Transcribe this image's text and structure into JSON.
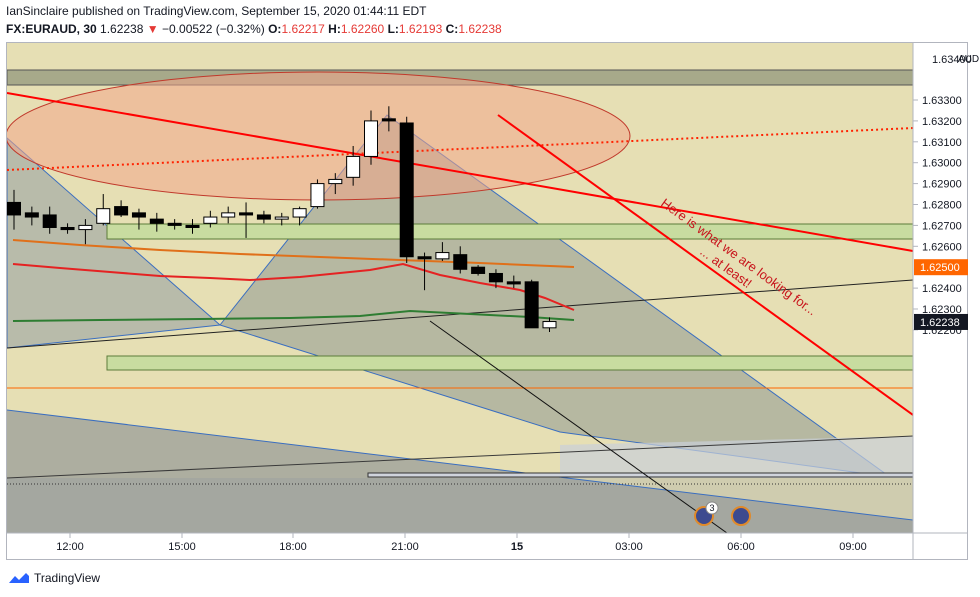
{
  "header": {
    "line1": "IanSinclaire published on TradingView.com, September 15, 2020 01:44:11 EDT",
    "symbol": "FX:EURAUD, 30",
    "price": "1.62238",
    "change_arrow": "▼",
    "change": "−0.00522 (−0.32%)",
    "o_label": "O:",
    "o_value": "1.62217",
    "h_label": "H:",
    "h_value": "1.62260",
    "l_label": "L:",
    "l_value": "1.62193",
    "c_label": "C:",
    "c_value": "1.62238"
  },
  "footer": {
    "brand": "TradingView"
  },
  "colors": {
    "background": "#e6dfb4",
    "up_candle": "#ffffff",
    "down_candle": "#000000",
    "trendline_red": "#ff0000",
    "price_label": "#ff6600",
    "last_price_label": "#131722"
  },
  "chart_data": {
    "type": "candlestick",
    "currency_label": "AUD",
    "y_ticks": [
      1.633,
      1.632,
      1.631,
      1.63,
      1.629,
      1.628,
      1.627,
      1.626,
      1.624,
      1.623,
      1.622
    ],
    "y_tick_labels": [
      "1.63300",
      "1.63200",
      "1.63100",
      "1.63000",
      "1.62900",
      "1.62800",
      "1.62700",
      "1.62600",
      "1.62400",
      "1.62300",
      "1.62200"
    ],
    "y_top_label": "1.63400",
    "ylim": [
      1.6208,
      1.6345
    ],
    "x_tick_labels": [
      "12:00",
      "15:00",
      "18:00",
      "21:00",
      "15",
      "03:00",
      "06:00",
      "09:00"
    ],
    "price_labels": [
      {
        "value": "1.62500",
        "color": "#ff6600"
      },
      {
        "value": "1.62238",
        "color": "#131722"
      }
    ],
    "annotation_text": [
      "Here is what we are looking for...",
      "... at least!"
    ],
    "event_badge": "3",
    "candles": [
      {
        "o": 1.6281,
        "h": 1.6287,
        "l": 1.6268,
        "c": 1.6275
      },
      {
        "o": 1.6276,
        "h": 1.6279,
        "l": 1.627,
        "c": 1.6274
      },
      {
        "o": 1.6275,
        "h": 1.6279,
        "l": 1.6266,
        "c": 1.6269
      },
      {
        "o": 1.6269,
        "h": 1.6271,
        "l": 1.6266,
        "c": 1.6268
      },
      {
        "o": 1.6268,
        "h": 1.6273,
        "l": 1.6261,
        "c": 1.627
      },
      {
        "o": 1.6271,
        "h": 1.6285,
        "l": 1.627,
        "c": 1.6278
      },
      {
        "o": 1.6279,
        "h": 1.6282,
        "l": 1.6274,
        "c": 1.6275
      },
      {
        "o": 1.6276,
        "h": 1.6278,
        "l": 1.6268,
        "c": 1.6274
      },
      {
        "o": 1.6273,
        "h": 1.6276,
        "l": 1.6267,
        "c": 1.6271
      },
      {
        "o": 1.6271,
        "h": 1.6273,
        "l": 1.6268,
        "c": 1.627
      },
      {
        "o": 1.627,
        "h": 1.6273,
        "l": 1.6266,
        "c": 1.6269
      },
      {
        "o": 1.6271,
        "h": 1.6277,
        "l": 1.6269,
        "c": 1.6274
      },
      {
        "o": 1.6274,
        "h": 1.6279,
        "l": 1.6271,
        "c": 1.6276
      },
      {
        "o": 1.6276,
        "h": 1.6281,
        "l": 1.6264,
        "c": 1.6275
      },
      {
        "o": 1.6275,
        "h": 1.6277,
        "l": 1.6271,
        "c": 1.6273
      },
      {
        "o": 1.6273,
        "h": 1.6276,
        "l": 1.627,
        "c": 1.6274
      },
      {
        "o": 1.6274,
        "h": 1.6279,
        "l": 1.627,
        "c": 1.6278
      },
      {
        "o": 1.6279,
        "h": 1.6292,
        "l": 1.6278,
        "c": 1.629
      },
      {
        "o": 1.629,
        "h": 1.6295,
        "l": 1.6285,
        "c": 1.6292
      },
      {
        "o": 1.6293,
        "h": 1.6308,
        "l": 1.6289,
        "c": 1.6303
      },
      {
        "o": 1.6303,
        "h": 1.6325,
        "l": 1.6299,
        "c": 1.632
      },
      {
        "o": 1.6321,
        "h": 1.6327,
        "l": 1.6315,
        "c": 1.632
      },
      {
        "o": 1.6319,
        "h": 1.6322,
        "l": 1.6252,
        "c": 1.6255
      },
      {
        "o": 1.6255,
        "h": 1.6257,
        "l": 1.6239,
        "c": 1.6254
      },
      {
        "o": 1.6254,
        "h": 1.6262,
        "l": 1.6253,
        "c": 1.6257
      },
      {
        "o": 1.6256,
        "h": 1.626,
        "l": 1.6247,
        "c": 1.6249
      },
      {
        "o": 1.625,
        "h": 1.6251,
        "l": 1.6246,
        "c": 1.6247
      },
      {
        "o": 1.6247,
        "h": 1.6249,
        "l": 1.624,
        "c": 1.6243
      },
      {
        "o": 1.6243,
        "h": 1.6246,
        "l": 1.624,
        "c": 1.6242
      },
      {
        "o": 1.6243,
        "h": 1.6244,
        "l": 1.6221,
        "c": 1.6221
      },
      {
        "o": 1.6221,
        "h": 1.6226,
        "l": 1.6219,
        "c": 1.6224
      }
    ]
  }
}
